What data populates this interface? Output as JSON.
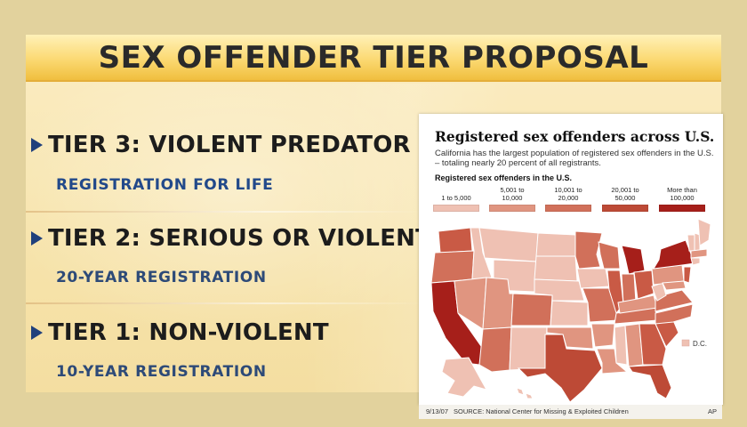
{
  "slide": {
    "title": "SEX OFFENDER TIER PROPOSAL",
    "tiers": [
      {
        "label": "TIER 3: VIOLENT PREDATOR",
        "detail": "REGISTRATION FOR LIFE"
      },
      {
        "label": "TIER 2: SERIOUS OR VIOLENT",
        "detail": "20-YEAR REGISTRATION"
      },
      {
        "label": "TIER 1: NON-VIOLENT",
        "detail": "10-YEAR REGISTRATION"
      }
    ],
    "colors": {
      "background": "#e2d29d",
      "title_bar": "#f6c955",
      "bullet": "#20407c",
      "detail_text": "#22498a"
    }
  },
  "map": {
    "title": "Registered sex offenders across U.S.",
    "subtitle": "California has the largest population of registered sex offenders in the U.S. – totaling nearly 20 percent of all registrants.",
    "legend_title": "Registered sex offenders in the U.S.",
    "legend": [
      {
        "label": "1 to 5,000",
        "color": "#efc1b3"
      },
      {
        "label": "5,001 to 10,000",
        "color": "#e09580"
      },
      {
        "label": "10,001 to 20,000",
        "color": "#d1705a"
      },
      {
        "label": "20,001 to 50,000",
        "color": "#bd4a36"
      },
      {
        "label": "More than 100,000",
        "color": "#a61f1a"
      }
    ],
    "dc_label": "D.C.",
    "footer": {
      "date": "9/13/07",
      "source": "SOURCE: National Center for Missing & Exploited Children",
      "credit": "AP"
    }
  }
}
